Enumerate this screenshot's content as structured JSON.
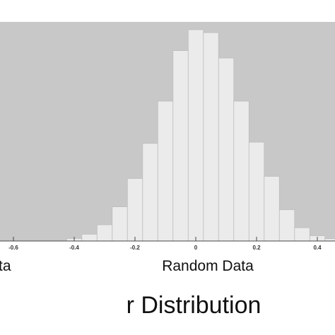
{
  "chart_data": {
    "type": "bar",
    "title": "r Distribution",
    "xlabel": "Random Data",
    "left_label_fragment": "ta",
    "ylabel": "",
    "xlim": [
      -0.63,
      0.45
    ],
    "ylim": [
      0,
      100
    ],
    "bin_width": 0.05,
    "x_ticks": [
      {
        "value": -0.6,
        "label": "-0.6"
      },
      {
        "value": -0.4,
        "label": "-0.4"
      },
      {
        "value": -0.2,
        "label": "-0.2"
      },
      {
        "value": 0,
        "label": "0"
      },
      {
        "value": 0.2,
        "label": "0.2"
      },
      {
        "value": 0.4,
        "label": "0.4"
      }
    ],
    "bins": [
      {
        "x": -0.4,
        "value": 1.2
      },
      {
        "x": -0.35,
        "value": 3.2
      },
      {
        "x": -0.3,
        "value": 7.7
      },
      {
        "x": -0.25,
        "value": 16.2
      },
      {
        "x": -0.2,
        "value": 29.6
      },
      {
        "x": -0.15,
        "value": 46.2
      },
      {
        "x": -0.1,
        "value": 66.2
      },
      {
        "x": -0.05,
        "value": 90.1
      },
      {
        "x": 0.0,
        "value": 100
      },
      {
        "x": 0.05,
        "value": 98.6
      },
      {
        "x": 0.1,
        "value": 86.6
      },
      {
        "x": 0.15,
        "value": 66.2
      },
      {
        "x": 0.2,
        "value": 46.8
      },
      {
        "x": 0.25,
        "value": 30.6
      },
      {
        "x": 0.3,
        "value": 14.8
      },
      {
        "x": 0.35,
        "value": 6.3
      },
      {
        "x": 0.4,
        "value": 2.5
      },
      {
        "x": 0.45,
        "value": 1.1
      }
    ],
    "colors": {
      "plot_background": "#c8c8c8",
      "bar_fill": "#ebebeb",
      "bar_stroke": "#bdbdbd",
      "axis": "#444444"
    }
  }
}
